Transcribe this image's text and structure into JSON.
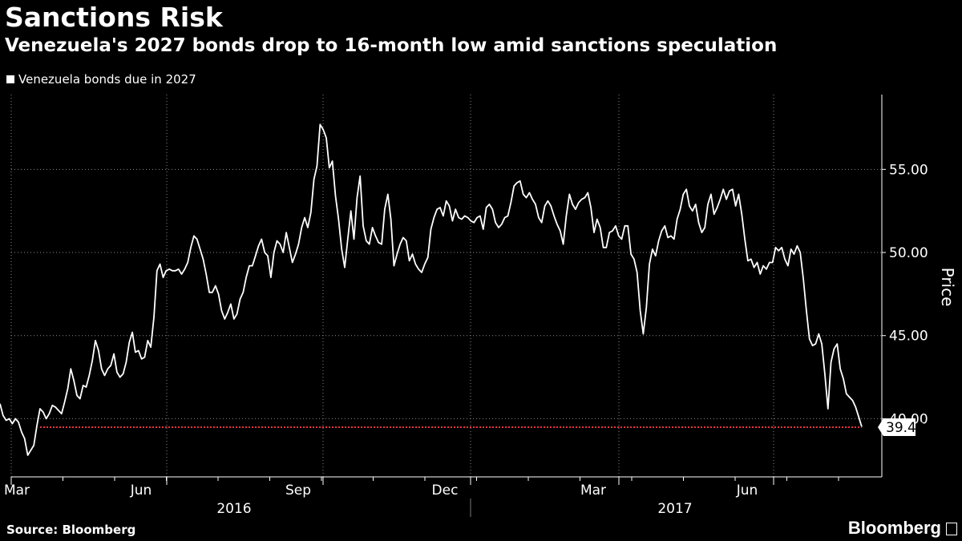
{
  "chart_data": {
    "type": "line",
    "title": "Sanctions Risk",
    "subtitle": "Venezuela's 2027 bonds drop to 16-month low amid sanctions speculation",
    "ylabel": "Price",
    "ylim": [
      36.5,
      59.5
    ],
    "y_ticks": [
      "55.00",
      "50.00",
      "45.00",
      "40.00"
    ],
    "x_ticks": [
      "Mar",
      "Jun",
      "Sep",
      "Dec",
      "Mar",
      "Jun"
    ],
    "years": [
      "2016",
      "2017"
    ],
    "grid": true,
    "legend_position": "top-left",
    "last_value_label": "39.49",
    "reference_line": 39.49,
    "series": [
      {
        "name": "Venezuela bonds due in 2027",
        "color": "#ffffff",
        "values": [
          40.9,
          40.2,
          39.9,
          40.0,
          39.7,
          40.0,
          39.8,
          39.2,
          38.8,
          37.8,
          38.1,
          38.4,
          39.6,
          40.6,
          40.4,
          40.0,
          40.3,
          40.8,
          40.7,
          40.5,
          40.3,
          41.0,
          41.8,
          43.0,
          42.3,
          41.4,
          41.2,
          42.0,
          41.9,
          42.6,
          43.5,
          44.7,
          44.1,
          43.0,
          42.6,
          43.0,
          43.2,
          43.9,
          42.8,
          42.5,
          42.7,
          43.4,
          44.6,
          45.2,
          44.0,
          44.1,
          43.6,
          43.7,
          44.7,
          44.3,
          46.1,
          48.9,
          49.3,
          48.5,
          48.9,
          49.0,
          48.9,
          48.9,
          49.0,
          48.7,
          49.0,
          49.4,
          50.3,
          51.0,
          50.8,
          50.2,
          49.6,
          48.7,
          47.6,
          47.6,
          48.0,
          47.5,
          46.5,
          46.0,
          46.4,
          46.9,
          46.0,
          46.3,
          47.2,
          47.6,
          48.5,
          49.2,
          49.2,
          49.8,
          50.4,
          50.8,
          50.0,
          49.8,
          48.5,
          50.0,
          50.7,
          50.5,
          50.0,
          51.2,
          50.3,
          49.4,
          49.9,
          50.5,
          51.5,
          52.1,
          51.5,
          52.4,
          54.4,
          55.2,
          57.7,
          57.4,
          56.9,
          55.1,
          55.5,
          53.4,
          52.0,
          50.2,
          49.1,
          50.8,
          52.5,
          50.8,
          53.3,
          54.6,
          51.6,
          50.7,
          50.5,
          51.5,
          51.0,
          50.6,
          50.5,
          52.6,
          53.5,
          52.0,
          49.2,
          49.9,
          50.5,
          50.9,
          50.7,
          49.5,
          49.9,
          49.3,
          49.0,
          48.8,
          49.3,
          49.7,
          51.4,
          52.1,
          52.6,
          52.7,
          52.2,
          53.1,
          52.8,
          51.9,
          52.6,
          52.1,
          52.0,
          52.2,
          52.1,
          51.9,
          51.8,
          52.1,
          52.2,
          51.4,
          52.7,
          52.9,
          52.6,
          51.8,
          51.5,
          51.7,
          52.1,
          52.2,
          53.0,
          54.0,
          54.2,
          54.3,
          53.5,
          53.3,
          53.6,
          53.2,
          52.9,
          52.1,
          51.8,
          52.8,
          53.1,
          52.8,
          52.2,
          51.7,
          51.3,
          50.5,
          52.2,
          53.5,
          52.9,
          52.6,
          53.0,
          53.2,
          53.3,
          53.6,
          52.7,
          51.2,
          52.0,
          51.5,
          50.3,
          50.3,
          51.2,
          51.3,
          51.6,
          51.0,
          50.8,
          51.6,
          51.6,
          49.9,
          49.6,
          48.8,
          46.5,
          45.1,
          46.7,
          49.3,
          50.2,
          49.8,
          50.7,
          51.3,
          51.6,
          50.9,
          51.0,
          50.8,
          52.0,
          52.6,
          53.5,
          53.8,
          52.8,
          52.5,
          52.9,
          51.8,
          51.2,
          51.5,
          52.9,
          53.5,
          52.3,
          52.7,
          53.2,
          53.8,
          53.2,
          53.7,
          53.8,
          52.8,
          53.5,
          52.3,
          50.8,
          49.5,
          49.6,
          49.1,
          49.4,
          48.7,
          49.2,
          49.0,
          49.4,
          49.4,
          50.3,
          50.1,
          50.3,
          49.6,
          49.2,
          50.2,
          49.9,
          50.4,
          50.0,
          48.4,
          46.5,
          44.8,
          44.4,
          44.5,
          45.1,
          44.5,
          42.7,
          40.6,
          43.4,
          44.2,
          44.5,
          43.0,
          42.4,
          41.5,
          41.3,
          41.1,
          40.7,
          40.1,
          39.5
        ]
      }
    ]
  },
  "footer": {
    "source": "Source: Bloomberg",
    "brand": "Bloomberg"
  }
}
